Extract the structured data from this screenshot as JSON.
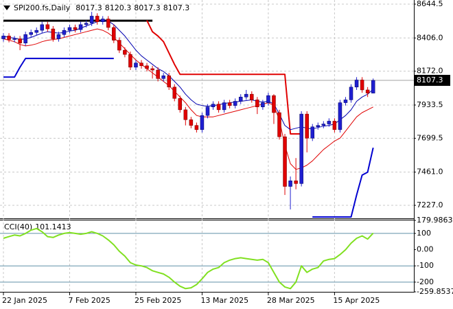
{
  "chart_data": [
    {
      "type": "candlestick",
      "symbol": "SPI200.fs,Daily",
      "categories": [
        "22 Jan 2025",
        null,
        null,
        null,
        null,
        null,
        null,
        null,
        null,
        null,
        null,
        null,
        "7 Feb 2025",
        null,
        null,
        null,
        null,
        null,
        null,
        null,
        null,
        null,
        null,
        null,
        "25 Feb 2025",
        null,
        null,
        null,
        null,
        null,
        null,
        null,
        null,
        null,
        null,
        null,
        "13 Mar 2025",
        null,
        null,
        null,
        null,
        null,
        null,
        null,
        null,
        null,
        null,
        null,
        "28 Mar 2025",
        null,
        null,
        null,
        null,
        null,
        null,
        null,
        null,
        null,
        null,
        null,
        "15 Apr 2025",
        null,
        null,
        null,
        null,
        null,
        null,
        null
      ],
      "open": [
        8400,
        8420,
        8395,
        8400,
        8370,
        8430,
        8445,
        8460,
        8500,
        8470,
        8400,
        8430,
        8460,
        8480,
        8465,
        8500,
        8510,
        8560,
        8520,
        8540,
        8480,
        8390,
        8320,
        8290,
        8200,
        8230,
        8210,
        8190,
        8180,
        8120,
        8140,
        8060,
        7980,
        7900,
        7830,
        7790,
        7760,
        7860,
        7920,
        7940,
        7900,
        7950,
        7930,
        7960,
        7990,
        8010,
        7970,
        7920,
        7950,
        8000,
        7880,
        7710,
        7360,
        7400,
        7380,
        7870,
        7700,
        7780,
        7790,
        7800,
        7820,
        7760,
        7950,
        7970,
        8060,
        8110,
        8040,
        8017.3
      ],
      "high": [
        8440,
        8440,
        8420,
        8420,
        8450,
        8465,
        8480,
        8520,
        8520,
        8490,
        8450,
        8480,
        8500,
        8500,
        8520,
        8530,
        8590,
        8580,
        8560,
        8560,
        8500,
        8410,
        8340,
        8310,
        8250,
        8250,
        8230,
        8210,
        8200,
        8160,
        8160,
        8080,
        8000,
        7920,
        7850,
        7810,
        7880,
        7940,
        7960,
        7960,
        7970,
        7970,
        7980,
        8010,
        8040,
        8030,
        7990,
        7970,
        8020,
        8010,
        7900,
        7730,
        7430,
        7560,
        7890,
        7890,
        7800,
        7810,
        7820,
        7840,
        7840,
        7970,
        7990,
        8080,
        8130,
        8130,
        8060,
        8120.3
      ],
      "low": [
        8380,
        8375,
        8375,
        8320,
        8350,
        8410,
        8425,
        8440,
        8450,
        8380,
        8380,
        8410,
        8440,
        8445,
        8445,
        8480,
        8490,
        8500,
        8500,
        8460,
        8370,
        8300,
        8270,
        8180,
        8180,
        8190,
        8170,
        8120,
        8100,
        8100,
        8040,
        7960,
        7880,
        7790,
        7770,
        7740,
        7740,
        7840,
        7900,
        7880,
        7880,
        7910,
        7910,
        7940,
        7970,
        7950,
        7870,
        7900,
        7930,
        7800,
        7690,
        7300,
        7198,
        7340,
        7360,
        7600,
        7680,
        7760,
        7770,
        7780,
        7740,
        7740,
        7930,
        7950,
        8040,
        8020,
        7990,
        8017.3
      ],
      "close": [
        8420,
        8395,
        8400,
        8370,
        8430,
        8445,
        8460,
        8500,
        8470,
        8400,
        8430,
        8460,
        8480,
        8465,
        8500,
        8510,
        8560,
        8520,
        8540,
        8480,
        8390,
        8320,
        8290,
        8200,
        8230,
        8210,
        8190,
        8180,
        8120,
        8140,
        8060,
        7980,
        7900,
        7830,
        7790,
        7760,
        7860,
        7920,
        7940,
        7900,
        7950,
        7930,
        7960,
        7990,
        8010,
        7970,
        7920,
        7950,
        8000,
        7880,
        7710,
        7360,
        7400,
        7380,
        7870,
        7700,
        7780,
        7790,
        7800,
        7820,
        7760,
        7950,
        7970,
        8060,
        8110,
        8040,
        8017.3,
        8107.3
      ],
      "up_color": "#1f1fd0",
      "down_color": "#e00000",
      "series": [
        {
          "color": "#000000",
          "width": 3,
          "values": [
            8528,
            8528,
            8528,
            8528,
            8528,
            8528,
            8528,
            8528,
            8528,
            8528,
            8528,
            8528,
            8528,
            8528,
            8528,
            8528,
            8528,
            8528,
            8528,
            8528,
            8528,
            8528,
            8528,
            8528,
            8528,
            8528,
            8528,
            8528,
            null,
            null,
            null,
            null,
            null,
            null,
            null,
            null,
            null,
            null,
            null,
            null,
            null,
            null,
            null,
            null,
            null,
            null,
            null,
            null,
            null,
            null,
            null,
            null,
            null,
            null,
            null,
            null,
            null,
            null,
            null,
            null,
            null,
            null,
            null,
            null,
            null,
            null,
            null,
            null
          ]
        },
        {
          "color": "#e00000",
          "width": 2,
          "values": [
            null,
            null,
            null,
            null,
            null,
            null,
            null,
            null,
            null,
            null,
            null,
            null,
            null,
            null,
            null,
            null,
            null,
            null,
            null,
            null,
            null,
            null,
            null,
            null,
            null,
            null,
            8530,
            8450,
            8420,
            8380,
            8300,
            8220,
            8150,
            8150,
            8150,
            8150,
            8150,
            8150,
            8150,
            8150,
            8150,
            8150,
            8150,
            8150,
            8150,
            8150,
            8150,
            8150,
            8150,
            8150,
            8150,
            8150,
            7730,
            7730,
            7730,
            null,
            null,
            null,
            null,
            null,
            null,
            null,
            null,
            null,
            null,
            null,
            null,
            null
          ]
        },
        {
          "color": "#0000d0",
          "width": 2,
          "values": [
            8130,
            8130,
            8130,
            8200,
            8262,
            8262,
            8262,
            8262,
            8262,
            8262,
            8262,
            8262,
            8262,
            8262,
            8262,
            8262,
            8262,
            8262,
            8262,
            8262,
            8262,
            null,
            null,
            null,
            null,
            null,
            null,
            null,
            null,
            null,
            null,
            null,
            null,
            null,
            null,
            null,
            null,
            null,
            null,
            null,
            null,
            null,
            null,
            null,
            null,
            null,
            null,
            null,
            null,
            null,
            null,
            null,
            null,
            null,
            null,
            null,
            7145,
            7145,
            7145,
            7145,
            7145,
            7145,
            7145,
            7145,
            7300,
            7440,
            7460,
            7633
          ]
        },
        {
          "color": "#0000b0",
          "width": 1,
          "values": [
            8420,
            8410,
            8405,
            8395,
            8400,
            8410,
            8425,
            8440,
            8450,
            8445,
            8440,
            8445,
            8455,
            8460,
            8475,
            8490,
            8505,
            8520,
            8530,
            8525,
            8500,
            8460,
            8420,
            8370,
            8320,
            8280,
            8250,
            8220,
            8190,
            8170,
            8140,
            8100,
            8060,
            8010,
            7970,
            7940,
            7930,
            7925,
            7930,
            7935,
            7945,
            7950,
            7955,
            7960,
            7965,
            7970,
            7960,
            7955,
            7960,
            7940,
            7870,
            7790,
            7760,
            7770,
            7780,
            7770,
            7765,
            7775,
            7785,
            7790,
            7800,
            7830,
            7860,
            7900,
            7960,
            7990,
            8010,
            8045
          ]
        },
        {
          "color": "#e00000",
          "width": 1,
          "values": [
            8400,
            8390,
            8380,
            8360,
            8350,
            8355,
            8365,
            8380,
            8390,
            8395,
            8400,
            8410,
            8420,
            8430,
            8440,
            8450,
            8460,
            8470,
            8460,
            8440,
            8410,
            8370,
            8330,
            8290,
            8250,
            8220,
            8190,
            8160,
            8130,
            8100,
            8070,
            8030,
            7990,
            7950,
            7900,
            7860,
            7850,
            7850,
            7850,
            7860,
            7870,
            7880,
            7890,
            7900,
            7910,
            7920,
            7930,
            7940,
            7950,
            7930,
            7830,
            7650,
            7520,
            7480,
            7490,
            7510,
            7540,
            7580,
            7620,
            7650,
            7680,
            7700,
            7750,
            7800,
            7850,
            7880,
            7900,
            7920
          ]
        }
      ],
      "ylim": [
        7135.1,
        8673.5
      ],
      "yticks": [
        8644.5,
        {
          "value": 8406,
          "label": "8406.0"
        },
        {
          "value": 8172,
          "label": "8172.0"
        },
        7933.5,
        7699.5,
        {
          "value": 7461,
          "label": "7461.0"
        },
        {
          "value": 7227,
          "label": "7227.0"
        }
      ],
      "grid": true
    },
    {
      "type": "line",
      "name": "CCI(40)",
      "color": "#80e020",
      "values": [
        70,
        80,
        90,
        85,
        100,
        120,
        130,
        110,
        80,
        75,
        90,
        100,
        105,
        100,
        95,
        100,
        110,
        100,
        85,
        60,
        30,
        -10,
        -40,
        -80,
        -95,
        -100,
        -110,
        -130,
        -140,
        -150,
        -170,
        -200,
        -225,
        -240,
        -235,
        -215,
        -180,
        -140,
        -120,
        -110,
        -80,
        -65,
        -55,
        -50,
        -55,
        -60,
        -65,
        -60,
        -80,
        -140,
        -200,
        -230,
        -240,
        -200,
        -100,
        -140,
        -120,
        -110,
        -70,
        -60,
        -55,
        -30,
        0,
        40,
        70,
        85,
        65,
        101.1413
      ],
      "ylim": [
        -259.8537,
        179.9863
      ],
      "yticks": [
        179.9863,
        100,
        {
          "value": 0,
          "label": "0.00"
        },
        -100,
        -200,
        -259.8537
      ],
      "levels": [
        100,
        -100,
        -200
      ],
      "level_color": "#5f8fa8"
    }
  ]
}
